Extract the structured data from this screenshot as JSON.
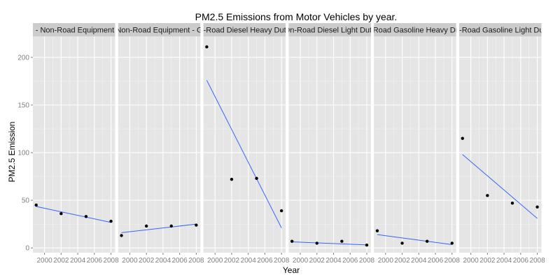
{
  "chart_data": {
    "type": "scatter",
    "title": "PM2.5 Emissions from Motor Vehicles by year.",
    "xlabel": "Year",
    "ylabel": "PM2.5 Emission",
    "x_ticks": [
      2000,
      2002,
      2004,
      2006,
      2008
    ],
    "y_ticks": [
      0,
      50,
      100,
      150,
      200
    ],
    "xlim": [
      1998.6,
      2008.5
    ],
    "ylim": [
      -5,
      222
    ],
    "grid": true,
    "trend": "linear fit",
    "panels": [
      {
        "strip": "e - Non-Road Equipment - ",
        "x": [
          1999,
          2002,
          2005,
          2008
        ],
        "y": [
          45,
          36,
          33,
          28
        ],
        "fit": [
          43.5,
          26.8
        ]
      },
      {
        "strip": " Non-Road Equipment - G",
        "x": [
          1999,
          2002,
          2005,
          2008
        ],
        "y": [
          13,
          23,
          23,
          24
        ],
        "fit": [
          16,
          25
        ]
      },
      {
        "strip": "n-Road Diesel Heavy Duty",
        "x": [
          1999,
          2002,
          2005,
          2008
        ],
        "y": [
          211,
          72,
          73,
          39
        ],
        "fit": [
          176,
          21
        ]
      },
      {
        "strip": "On-Road Diesel Light Duty",
        "x": [
          1999,
          2002,
          2005,
          2008
        ],
        "y": [
          7,
          5,
          7,
          3
        ],
        "fit": [
          6.4,
          3.2
        ]
      },
      {
        "strip": "-Road Gasoline Heavy Du",
        "x": [
          1999,
          2002,
          2005,
          2008
        ],
        "y": [
          18,
          5,
          7,
          5
        ],
        "fit": [
          14,
          3.5
        ]
      },
      {
        "strip": "n-Road Gasoline Light Dut",
        "x": [
          1999,
          2002,
          2005,
          2008
        ],
        "y": [
          115,
          55,
          47,
          43
        ],
        "fit": [
          98,
          31
        ]
      }
    ],
    "colors": {
      "panel_bg": "#e5e5e5",
      "strip_bg": "#cccccc",
      "grid_major": "#ffffff",
      "grid_minor": "#f2f2f2",
      "point": "#000000",
      "fit_line": "#3366ff",
      "tick_label": "#7f7f7f"
    }
  }
}
